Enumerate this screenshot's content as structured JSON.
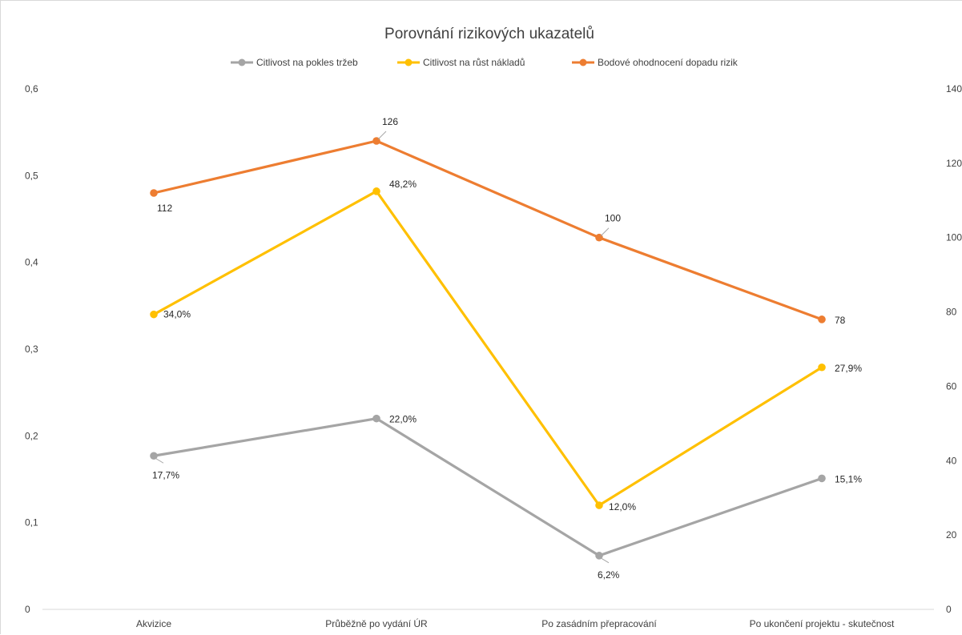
{
  "chart_data": {
    "type": "line",
    "title": "Porovnání rizikových ukazatelů",
    "categories": [
      "Akvizice",
      "Průběžně po vydání ÚR",
      "Po zasádním přepracování",
      "Po ukončení projektu - skutečnost"
    ],
    "y_left": {
      "ylim": [
        0,
        0.6
      ],
      "ticks": [
        0,
        0.1,
        0.2,
        0.3,
        0.4,
        0.5,
        0.6
      ],
      "tick_labels": [
        "0",
        "0,1",
        "0,2",
        "0,3",
        "0,4",
        "0,5",
        "0,6"
      ]
    },
    "y_right": {
      "ylim": [
        0,
        140
      ],
      "ticks": [
        0,
        20,
        40,
        60,
        80,
        100,
        120,
        140
      ],
      "tick_labels": [
        "0",
        "20",
        "40",
        "60",
        "80",
        "100",
        "120",
        "140"
      ]
    },
    "legend_position": "top",
    "grid": false,
    "series": [
      {
        "name": "Citlivost na pokles tržeb",
        "axis": "left",
        "color": "#a5a5a5",
        "values": [
          0.177,
          0.22,
          0.062,
          0.151
        ],
        "labels": [
          "17,7%",
          "22,0%",
          "6,2%",
          "15,1%"
        ]
      },
      {
        "name": "Citlivost na růst nákladů",
        "axis": "left",
        "color": "#ffc000",
        "values": [
          0.34,
          0.482,
          0.12,
          0.279
        ],
        "labels": [
          "34,0%",
          "48,2%",
          "12,0%",
          "27,9%"
        ]
      },
      {
        "name": "Bodové ohodnocení dopadu rizik",
        "axis": "right",
        "color": "#ed7d31",
        "values": [
          112,
          126,
          100,
          78
        ],
        "labels": [
          "112",
          "126",
          "100",
          "78"
        ]
      }
    ]
  }
}
